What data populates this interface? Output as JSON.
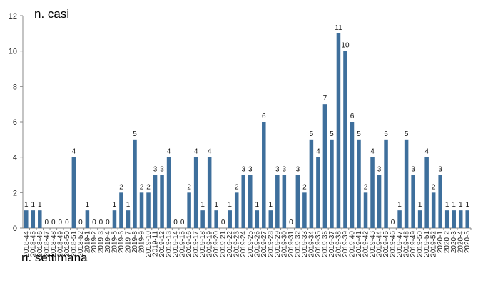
{
  "chart_data": {
    "type": "bar",
    "ylabel": "n. casi",
    "xlabel": "n. settimana",
    "ylim": [
      0,
      12
    ],
    "yticks": [
      0,
      2,
      4,
      6,
      8,
      10,
      12
    ],
    "grid": false,
    "bar_color": "#3e6f9c",
    "categories": [
      "2018-44",
      "2018-45",
      "2018-46",
      "2018-47",
      "2018-48",
      "2018-49",
      "2018-50",
      "2018-51",
      "2018-52",
      "2019-1",
      "2019-2",
      "2019-3",
      "2019-4",
      "2019-5",
      "2019-6",
      "2019-7",
      "2019-8",
      "2019-9",
      "2019-10",
      "2019-11",
      "2019-12",
      "2019-13",
      "2019-14",
      "2019-15",
      "2019-16",
      "2019-17",
      "2019-18",
      "2019-19",
      "2019-20",
      "2019-21",
      "2019-22",
      "2019-23",
      "2019-24",
      "2019-25",
      "2019-26",
      "2019-27",
      "2019-28",
      "2019-29",
      "2019-30",
      "2019-31",
      "2019-32",
      "2019-33",
      "2019-34",
      "2019-35",
      "2019-36",
      "2019-37",
      "2019-38",
      "2019-39",
      "2019-40",
      "2019-41",
      "2019-42",
      "2019-43",
      "2019-44",
      "2019-45",
      "2019-46",
      "2019-47",
      "2019-48",
      "2019-49",
      "2019-50",
      "2019-51",
      "2019-52",
      "2020-1",
      "2020-2",
      "2020-3",
      "2020-4",
      "2020-5"
    ],
    "tick_labels": [
      "2018-44",
      "2018-45",
      "2018-46",
      "2018-47",
      "2018-48",
      "2018-49",
      "2018-50",
      "2018-51",
      "2018-52",
      "2019-1",
      "2019-2",
      "2019-3",
      "2019-4",
      "2019-5",
      "2019-6",
      "2019-7",
      "2019-8",
      "2019-9",
      "2019-10",
      "2019-11",
      "2019-12",
      "2019-13",
      "2019-14",
      "2019-15",
      "2019-16",
      "2019-17",
      "2019-18",
      "2019-19",
      "2019-20",
      "2019-21",
      "2019-22",
      "2019-23",
      "2019-24",
      "2019-25",
      "2019-26",
      "2019-27",
      "2019-28",
      "2019-29",
      "2019-30",
      "2019-31",
      "2019-32",
      "2019-33",
      "2019-34",
      "2019-35",
      "2019-36",
      "2019-37",
      "2019-38",
      "2019-39",
      "2019-40",
      "2019-41",
      "2019-42",
      "2019-43",
      "2019-44",
      "2019-45",
      "2019-46",
      "2019-47",
      "2019-48",
      "2019-49",
      "2019-50",
      "2019-51",
      "2019-52",
      "2020-1",
      "2020-2",
      "2020-3",
      "2020-4",
      "2020-5"
    ],
    "values": [
      1,
      1,
      1,
      0,
      0,
      0,
      0,
      4,
      0,
      1,
      0,
      0,
      0,
      1,
      2,
      1,
      5,
      2,
      2,
      3,
      3,
      4,
      0,
      0,
      2,
      4,
      1,
      4,
      1,
      0,
      1,
      2,
      3,
      3,
      1,
      6,
      1,
      3,
      3,
      0,
      3,
      2,
      5,
      4,
      7,
      5,
      11,
      10,
      6,
      5,
      2,
      4,
      3,
      5,
      0,
      1,
      5,
      3,
      1,
      4,
      2,
      3,
      1,
      1,
      1,
      1
    ]
  }
}
